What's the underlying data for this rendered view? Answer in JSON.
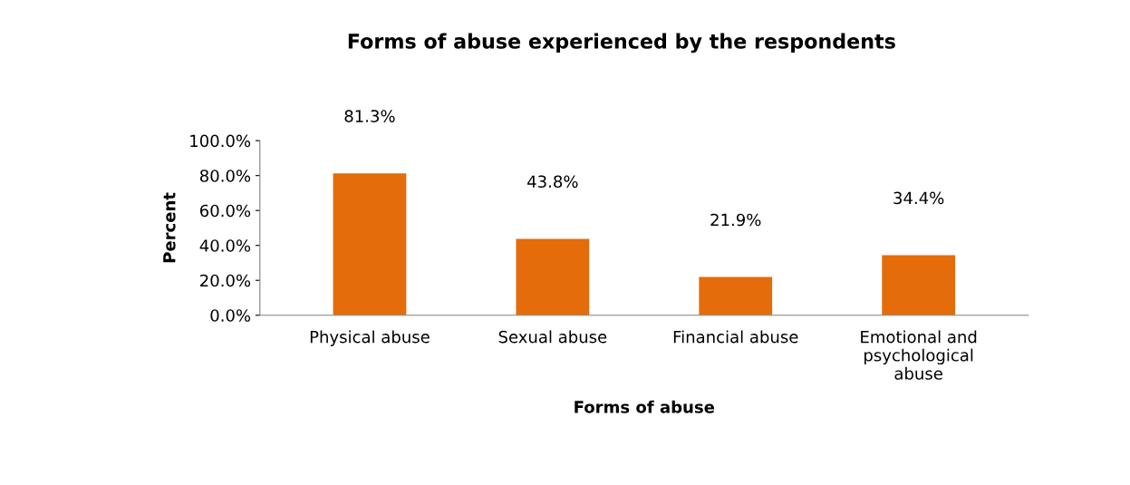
{
  "chart_data": {
    "type": "bar",
    "title": "Forms of abuse experienced by the respondents",
    "xlabel": "Forms of abuse",
    "ylabel": "Percent",
    "categories": [
      "Physical abuse",
      "Sexual abuse",
      "Financial abuse",
      "Emotional and\npsychological\nabuse"
    ],
    "values": [
      81.3,
      43.8,
      21.9,
      34.4
    ],
    "color": "#e46c0a",
    "value_labels": [
      "81.3%",
      "43.8%",
      "21.9%",
      "34.4%"
    ],
    "ylim": [
      0,
      100
    ],
    "yticks": [
      {
        "value": 0,
        "label": "0.0%"
      },
      {
        "value": 20,
        "label": "20.0%"
      },
      {
        "value": 40,
        "label": "40.0%"
      },
      {
        "value": 60,
        "label": "60.0%"
      },
      {
        "value": 80,
        "label": "80.0%"
      },
      {
        "value": 100,
        "label": "100.0%"
      }
    ],
    "grid": false,
    "legend": false
  }
}
